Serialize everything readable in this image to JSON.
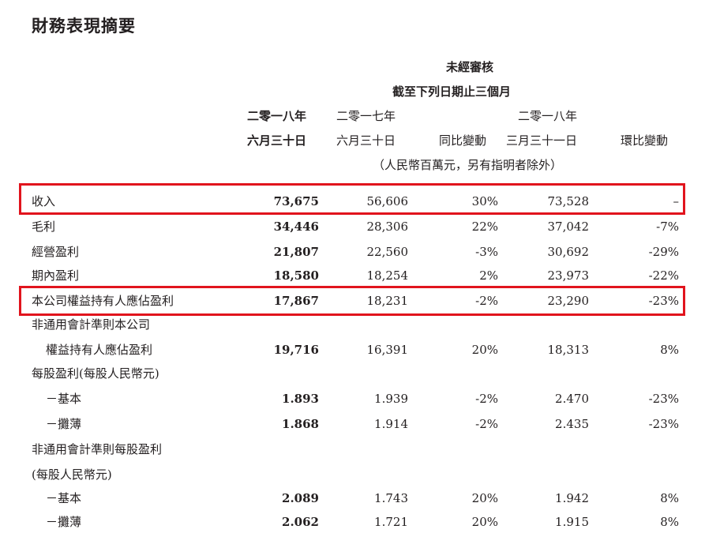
{
  "title": "財務表現摘要",
  "header": {
    "unaudited": "未經審核",
    "period": "截至下列日期止三個月",
    "col1_line1": "二零一八年",
    "col1_line2": "六月三十日",
    "col2_line1": "二零一七年",
    "col2_line2": "六月三十日",
    "col3": "同比變動",
    "col4_line1": "二零一八年",
    "col4_line2": "三月三十一日",
    "col5": "環比變動",
    "units": "（人民幣百萬元，另有指明者除外）"
  },
  "rows": [
    {
      "label": "收入",
      "v2018": "73,675",
      "v2017": "56,606",
      "yoy": "30%",
      "v2018q1": "73,528",
      "qoq": "–"
    },
    {
      "label": "毛利",
      "v2018": "34,446",
      "v2017": "28,306",
      "yoy": "22%",
      "v2018q1": "37,042",
      "qoq": "-7%"
    },
    {
      "label": "經營盈利",
      "v2018": "21,807",
      "v2017": "22,560",
      "yoy": "-3%",
      "v2018q1": "30,692",
      "qoq": "-29%"
    },
    {
      "label": "期內盈利",
      "v2018": "18,580",
      "v2017": "18,254",
      "yoy": "2%",
      "v2018q1": "23,973",
      "qoq": "-22%"
    },
    {
      "label": "本公司權益持有人應佔盈利",
      "v2018": "17,867",
      "v2017": "18,231",
      "yoy": "-2%",
      "v2018q1": "23,290",
      "qoq": "-23%"
    },
    {
      "label": "非通用會計準則本公司",
      "v2018": "",
      "v2017": "",
      "yoy": "",
      "v2018q1": "",
      "qoq": ""
    },
    {
      "label": "權益持有人應佔盈利",
      "v2018": "19,716",
      "v2017": "16,391",
      "yoy": "20%",
      "v2018q1": "18,313",
      "qoq": "8%"
    },
    {
      "label": "每股盈利(每股人民幣元)",
      "v2018": "",
      "v2017": "",
      "yoy": "",
      "v2018q1": "",
      "qoq": ""
    },
    {
      "label": "－基本",
      "v2018": "1.893",
      "v2017": "1.939",
      "yoy": "-2%",
      "v2018q1": "2.470",
      "qoq": "-23%"
    },
    {
      "label": "－攤薄",
      "v2018": "1.868",
      "v2017": "1.914",
      "yoy": "-2%",
      "v2018q1": "2.435",
      "qoq": "-23%"
    },
    {
      "label": "非通用會計準則每股盈利",
      "v2018": "",
      "v2017": "",
      "yoy": "",
      "v2018q1": "",
      "qoq": ""
    },
    {
      "label": "(每股人民幣元)",
      "v2018": "",
      "v2017": "",
      "yoy": "",
      "v2018q1": "",
      "qoq": ""
    },
    {
      "label": "－基本",
      "v2018": "2.089",
      "v2017": "1.743",
      "yoy": "20%",
      "v2018q1": "1.942",
      "qoq": "8%"
    },
    {
      "label": "－攤薄",
      "v2018": "2.062",
      "v2017": "1.721",
      "yoy": "20%",
      "v2018q1": "1.915",
      "qoq": "8%"
    }
  ],
  "highlight_color": "#e1141d"
}
